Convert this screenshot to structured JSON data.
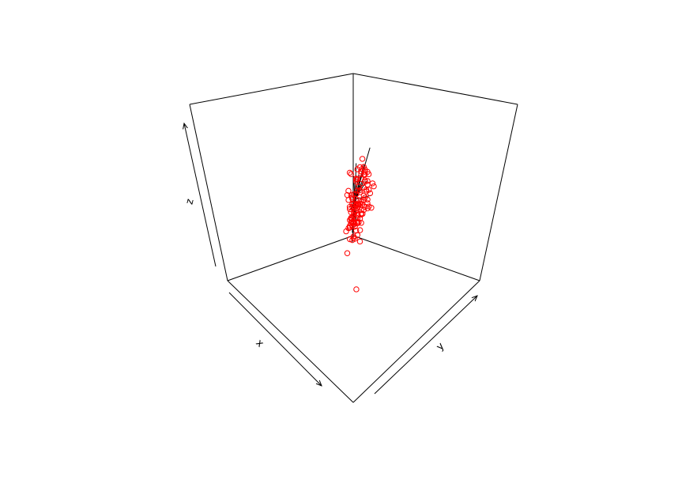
{
  "chart_data": {
    "type": "scatter",
    "projection": "3d-box",
    "xlabel": "x",
    "ylabel": "y",
    "zlabel": "z",
    "point_color": "#ff0000",
    "line_color": "#000000",
    "box_color": "#000000",
    "series": [
      {
        "points": [
          [
            0.51,
            0.56,
            0.72
          ],
          [
            0.39,
            0.46,
            0.71
          ],
          [
            0.39,
            0.48,
            0.65
          ],
          [
            0.4,
            0.51,
            0.59
          ],
          [
            0.41,
            0.53,
            0.64
          ],
          [
            0.47,
            0.63,
            0.61
          ],
          [
            0.46,
            0.61,
            0.62
          ],
          [
            0.52,
            0.66,
            0.5
          ],
          [
            0.55,
            0.63,
            0.55
          ],
          [
            0.43,
            0.54,
            0.47
          ],
          [
            0.27,
            0.34,
            0.36
          ],
          [
            0.39,
            0.38,
            0.45
          ],
          [
            0.44,
            0.43,
            0.42
          ],
          [
            0.57,
            0.55,
            0.39
          ],
          [
            0.38,
            0.35,
            0.38
          ],
          [
            0.39,
            0.45,
            0.63
          ],
          [
            0.45,
            0.47,
            0.6
          ],
          [
            0.55,
            0.53,
            0.68
          ],
          [
            0.4,
            0.43,
            0.64
          ],
          [
            0.56,
            0.67,
            0.51
          ],
          [
            0.57,
            0.54,
            0.36
          ],
          [
            0.63,
            0.57,
            0.36
          ],
          [
            0.42,
            0.37,
            0.47
          ],
          [
            0.34,
            0.36,
            0.42
          ],
          [
            0.37,
            0.37,
            0.46
          ],
          [
            0.61,
            0.69,
            0.52
          ],
          [
            0.64,
            0.71,
            0.51
          ],
          [
            0.55,
            0.58,
            0.39
          ],
          [
            0.51,
            0.53,
            0.32
          ],
          [
            0.49,
            0.54,
            0.25
          ],
          [
            0.44,
            0.44,
            0.23
          ],
          [
            0.48,
            0.49,
            0.25
          ],
          [
            0.37,
            0.38,
            0.39
          ],
          [
            0.56,
            0.57,
            0.37
          ],
          [
            0.44,
            0.41,
            0.4
          ],
          [
            0.53,
            0.56,
            0.43
          ],
          [
            0.44,
            0.55,
            0.59
          ],
          [
            0.57,
            0.69,
            0.53
          ],
          [
            0.42,
            0.45,
            0.52
          ],
          [
            0.47,
            0.43,
            0.47
          ],
          [
            0.48,
            0.52,
            0.58
          ],
          [
            0.48,
            0.46,
            0.51
          ],
          [
            0.46,
            0.45,
            0.48
          ],
          [
            0.45,
            0.5,
            0.44
          ],
          [
            0.55,
            0.58,
            0.42
          ],
          [
            0.58,
            0.6,
            0.44
          ],
          [
            0.48,
            0.59,
            0.52
          ],
          [
            0.53,
            0.59,
            0.47
          ],
          [
            0.55,
            0.61,
            0.46
          ],
          [
            0.43,
            0.43,
            0.36
          ],
          [
            0.47,
            0.5,
            0.44
          ],
          [
            0.54,
            0.63,
            0.56
          ],
          [
            0.46,
            0.44,
            0.36
          ],
          [
            0.52,
            0.52,
            0.43
          ],
          [
            0.36,
            0.33,
            0.58
          ],
          [
            0.35,
            0.31,
            0.46
          ],
          [
            0.4,
            0.41,
            0.38
          ],
          [
            0.42,
            0.43,
            0.38
          ],
          [
            0.38,
            0.36,
            0.35
          ],
          [
            0.32,
            0.32,
            0.37
          ],
          [
            0.53,
            0.59,
            0.52
          ],
          [
            0.52,
            0.56,
            0.49
          ],
          [
            0.5,
            0.52,
            0.54
          ],
          [
            0.49,
            0.51,
            0.47
          ],
          [
            0.46,
            0.5,
            0.46
          ],
          [
            0.45,
            0.47,
            0.44
          ],
          [
            0.53,
            0.59,
            0.39
          ],
          [
            0.55,
            0.59,
            0.4
          ],
          [
            0.56,
            0.61,
            0.43
          ],
          [
            0.57,
            0.6,
            0.41
          ],
          [
            0.6,
            0.66,
            0.48
          ],
          [
            0.5,
            0.53,
            0.29
          ],
          [
            0.45,
            0.44,
            0.22
          ],
          [
            0.44,
            0.44,
            0.24
          ],
          [
            0.42,
            0.41,
            0.29
          ],
          [
            0.41,
            0.4,
            0.31
          ],
          [
            0.54,
            0.51,
            0.27
          ],
          [
            0.49,
            0.44,
            0.15
          ],
          [
            0.52,
            0.62,
            0.6
          ],
          [
            0.41,
            0.48,
            0.66
          ],
          [
            0.42,
            0.48,
            0.6
          ],
          [
            0.4,
            0.43,
            0.58
          ],
          [
            0.45,
            0.54,
            0.67
          ],
          [
            0.49,
            0.51,
            0.63
          ],
          [
            0.58,
            0.71,
            0.62
          ],
          [
            0.6,
            0.72,
            0.65
          ],
          [
            0.56,
            0.64,
            0.58
          ],
          [
            0.46,
            0.57,
            0.68
          ],
          [
            0.51,
            0.6,
            0.64
          ],
          [
            0.5,
            0.55,
            0.56
          ],
          [
            0.38,
            0.41,
            0.41
          ],
          [
            0.43,
            0.43,
            0.32
          ],
          [
            0.4,
            0.38,
            0.32
          ],
          [
            0.41,
            0.38,
            0.28
          ],
          [
            0.44,
            0.4,
            0.28
          ],
          [
            0.52,
            0.49,
            0.33
          ],
          [
            0.52,
            0.51,
            0.39
          ],
          [
            0.49,
            0.46,
            0.36
          ],
          [
            0.61,
            0.63,
            0.5
          ],
          [
            0.59,
            0.64,
            0.54
          ],
          [
            0.43,
            0.42,
            0.43
          ],
          [
            0.46,
            0.51,
            0.55
          ],
          [
            0.47,
            0.55,
            0.66
          ],
          [
            0.47,
            0.53,
            0.66
          ],
          [
            0.5,
            0.59,
            0.68
          ],
          [
            0.51,
            0.59,
            0.73
          ],
          [
            0.56,
            0.58,
            0.65
          ],
          [
            0.56,
            0.64,
            0.63
          ],
          [
            0.52,
            0.62,
            0.59
          ],
          [
            0.51,
            0.6,
            0.65
          ],
          [
            0.67,
            0.72,
            0.42
          ],
          [
            0.48,
            0.57,
            0.47
          ],
          [
            0.54,
            0.56,
            0.46
          ],
          [
            0.45,
            0.49,
            0.48
          ],
          [
            0.53,
            0.54,
            0.37
          ],
          [
            0.48,
            0.48,
            0.34
          ],
          [
            0.73,
            0.75,
            0.08
          ]
        ]
      },
      {
        "segments": [
          [
            [
              0.51,
              0.52,
              0.51
            ],
            [
              0.38,
              0.51,
              0.79
            ]
          ],
          [
            [
              0.51,
              0.52,
              0.51
            ],
            [
              0.54,
              0.62,
              0.76
            ]
          ],
          [
            [
              0.51,
              0.52,
              0.51
            ],
            [
              0.57,
              0.67,
              0.68
            ]
          ],
          [
            [
              0.51,
              0.52,
              0.51
            ],
            [
              0.58,
              0.72,
              0.61
            ]
          ],
          [
            [
              0.51,
              0.52,
              0.51
            ],
            [
              0.42,
              0.42,
              0.6
            ]
          ],
          [
            [
              0.51,
              0.52,
              0.51
            ],
            [
              0.42,
              0.44,
              0.47
            ]
          ],
          [
            [
              0.51,
              0.52,
              0.51
            ],
            [
              0.29,
              0.3,
              0.43
            ]
          ],
          [
            [
              0.51,
              0.52,
              0.51
            ],
            [
              0.36,
              0.35,
              0.38
            ]
          ],
          [
            [
              0.51,
              0.52,
              0.51
            ],
            [
              0.44,
              0.43,
              0.26
            ]
          ],
          [
            [
              0.51,
              0.52,
              0.51
            ],
            [
              0.51,
              0.5,
              0.24
            ]
          ],
          [
            [
              0.51,
              0.52,
              0.51
            ],
            [
              0.5,
              0.52,
              0.73
            ]
          ],
          [
            [
              0.51,
              0.52,
              0.51
            ],
            [
              0.53,
              0.57,
              0.68
            ]
          ],
          [
            [
              0.51,
              0.52,
              0.51
            ],
            [
              0.58,
              0.61,
              0.5
            ]
          ],
          [
            [
              0.51,
              0.52,
              0.51
            ],
            [
              0.55,
              0.57,
              0.41
            ]
          ],
          [
            [
              0.51,
              0.52,
              0.51
            ],
            [
              0.47,
              0.48,
              0.55
            ]
          ],
          [
            [
              0.51,
              0.52,
              0.51
            ],
            [
              0.43,
              0.41,
              0.4
            ]
          ],
          [
            [
              0.51,
              0.52,
              0.51
            ],
            [
              0.46,
              0.45,
              0.34
            ]
          ],
          [
            [
              0.51,
              0.52,
              0.51
            ],
            [
              0.47,
              0.54,
              0.62
            ]
          ],
          [
            [
              0.51,
              0.52,
              0.51
            ],
            [
              0.48,
              0.53,
              0.59
            ]
          ],
          [
            [
              0.51,
              0.52,
              0.51
            ],
            [
              0.4,
              0.4,
              0.44
            ]
          ],
          [
            [
              0.51,
              0.52,
              0.51
            ],
            [
              0.44,
              0.45,
              0.34
            ]
          ],
          [
            [
              0.51,
              0.52,
              0.51
            ],
            [
              0.49,
              0.57,
              0.63
            ]
          ]
        ]
      }
    ]
  }
}
